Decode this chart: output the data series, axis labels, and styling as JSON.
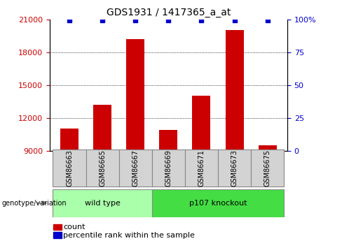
{
  "title": "GDS1931 / 1417365_a_at",
  "samples": [
    "GSM86663",
    "GSM86665",
    "GSM86667",
    "GSM86669",
    "GSM86671",
    "GSM86673",
    "GSM86675"
  ],
  "counts": [
    11000,
    13200,
    19200,
    10900,
    14000,
    20000,
    9500
  ],
  "ylim_left": [
    9000,
    21000
  ],
  "ylim_right": [
    0,
    100
  ],
  "yticks_left": [
    9000,
    12000,
    15000,
    18000,
    21000
  ],
  "yticks_right": [
    0,
    25,
    50,
    75,
    100
  ],
  "bar_color": "#cc0000",
  "dot_color": "#0000cc",
  "bar_width": 0.55,
  "groups": [
    {
      "label": "wild type",
      "n_samples": 3,
      "color": "#aaffaa"
    },
    {
      "label": "p107 knockout",
      "n_samples": 4,
      "color": "#44dd44"
    }
  ],
  "group_annotation_label": "genotype/variation",
  "left_axis_color": "#cc0000",
  "right_axis_color": "#0000cc",
  "tick_label_box_color": "#d3d3d3",
  "title_color": "#000000",
  "grid_linestyle": "dotted",
  "grid_color": "#000000",
  "grid_linewidth": 0.6
}
